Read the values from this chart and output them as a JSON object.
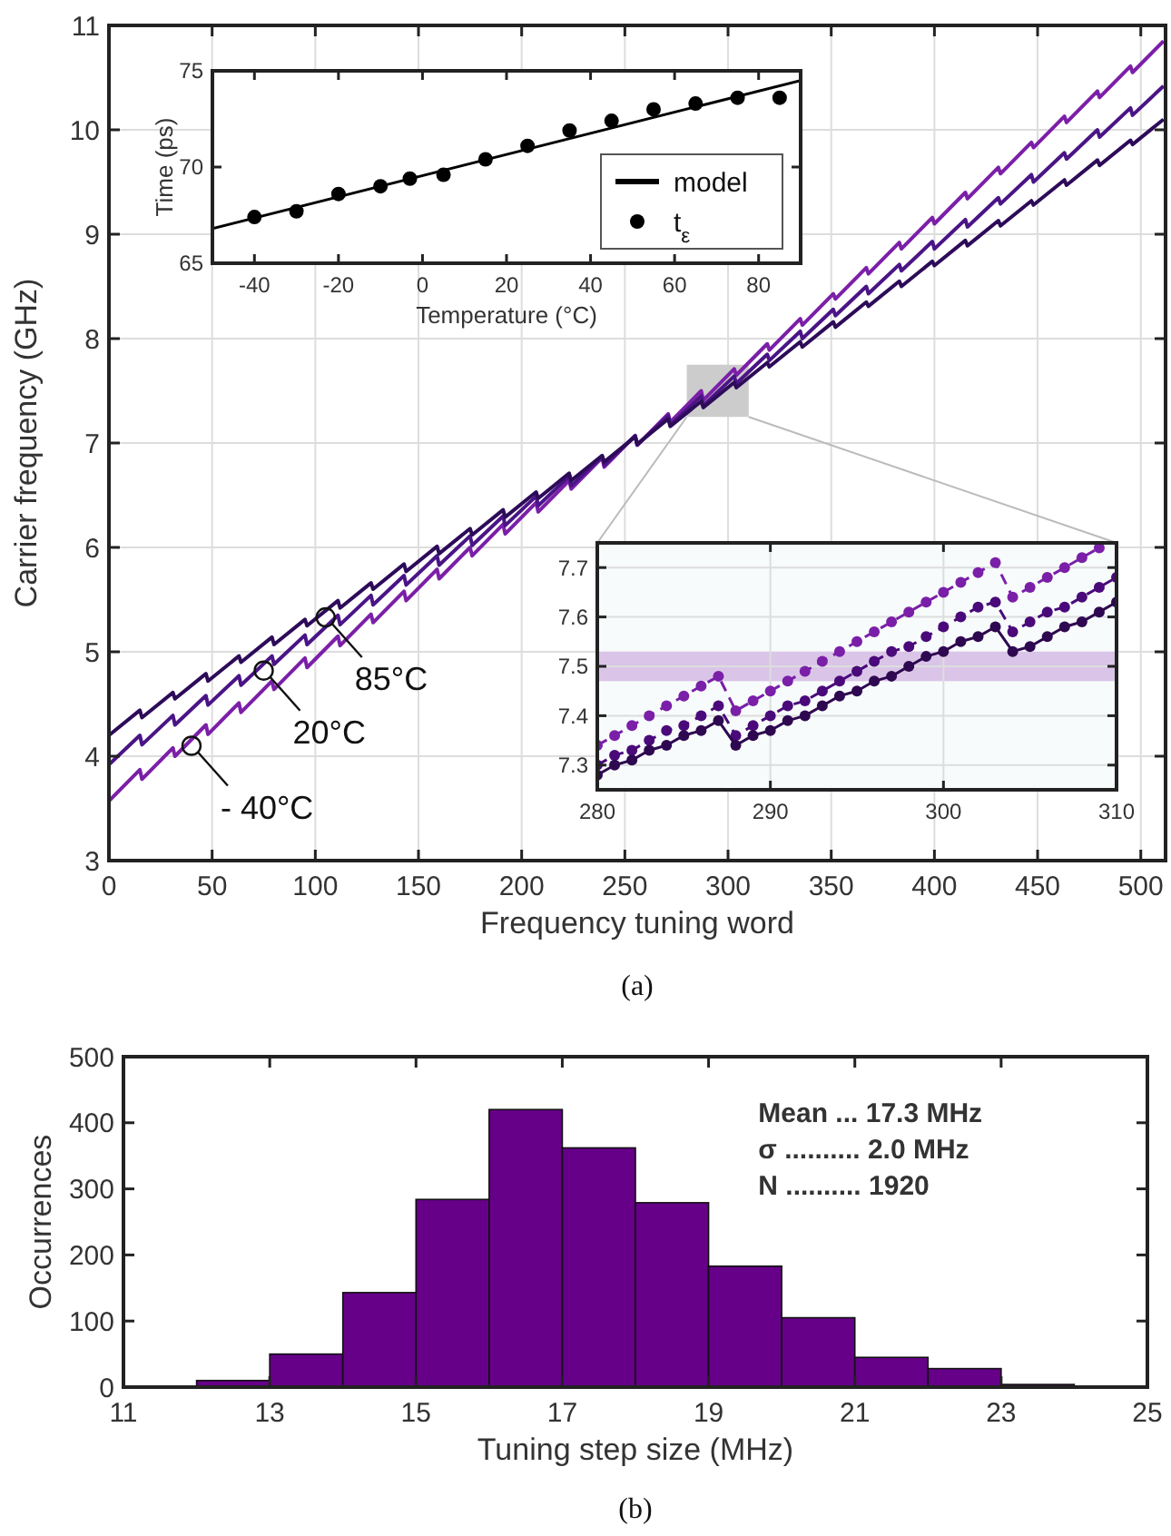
{
  "chart_data": [
    {
      "type": "line",
      "xlabel": "Frequency tuning word",
      "ylabel": "Carrier frequency (GHz)",
      "xlim": [
        0,
        512
      ],
      "ylim": [
        3,
        11
      ],
      "xticks": [
        0,
        50,
        100,
        150,
        200,
        250,
        300,
        350,
        400,
        450,
        500
      ],
      "yticks": [
        3,
        4,
        5,
        6,
        7,
        8,
        9,
        10,
        11
      ],
      "grid": true,
      "x": [
        0,
        15,
        16,
        31,
        32,
        47,
        48,
        63,
        64,
        79,
        80,
        95,
        96,
        111,
        112,
        127,
        128,
        143,
        144,
        159,
        160,
        175,
        176,
        191,
        192,
        207,
        208,
        223,
        224,
        239,
        240,
        255,
        256,
        271,
        272,
        287,
        288,
        303,
        304,
        319,
        320,
        335,
        336,
        351,
        352,
        367,
        368,
        383,
        384,
        399,
        400,
        415,
        416,
        431,
        432,
        447,
        448,
        463,
        464,
        479,
        480,
        495,
        496,
        511
      ],
      "series": [
        {
          "color": "#7b1fa8",
          "values": [
            3.57,
            3.87,
            3.78,
            4.08,
            4.0,
            4.3,
            4.21,
            4.51,
            4.42,
            4.72,
            4.64,
            4.94,
            4.85,
            5.15,
            5.06,
            5.36,
            5.28,
            5.58,
            5.49,
            5.79,
            5.7,
            6.0,
            5.92,
            6.22,
            6.13,
            6.43,
            6.34,
            6.64,
            6.56,
            6.86,
            6.77,
            7.07,
            6.98,
            7.28,
            7.2,
            7.5,
            7.41,
            7.71,
            7.65,
            7.95,
            7.89,
            8.19,
            8.13,
            8.43,
            8.38,
            8.68,
            8.62,
            8.92,
            8.86,
            9.16,
            9.1,
            9.4,
            9.34,
            9.64,
            9.58,
            9.88,
            9.83,
            10.13,
            10.07,
            10.37,
            10.31,
            10.61,
            10.55,
            10.85
          ]
        },
        {
          "color": "#4a1486",
          "values": [
            3.92,
            4.2,
            4.11,
            4.39,
            4.3,
            4.58,
            4.49,
            4.77,
            4.68,
            4.96,
            4.88,
            5.16,
            5.07,
            5.35,
            5.26,
            5.54,
            5.45,
            5.73,
            5.64,
            5.92,
            5.83,
            6.11,
            6.02,
            6.3,
            6.21,
            6.49,
            6.4,
            6.68,
            6.59,
            6.87,
            6.79,
            7.07,
            6.98,
            7.26,
            7.17,
            7.45,
            7.36,
            7.64,
            7.57,
            7.85,
            7.79,
            8.07,
            8.0,
            8.28,
            8.22,
            8.5,
            8.43,
            8.71,
            8.65,
            8.93,
            8.86,
            9.14,
            9.07,
            9.35,
            9.29,
            9.57,
            9.5,
            9.78,
            9.72,
            10.0,
            9.93,
            10.21,
            10.14,
            10.42
          ]
        },
        {
          "color": "#2d0b59",
          "values": [
            4.2,
            4.44,
            4.37,
            4.61,
            4.55,
            4.79,
            4.72,
            4.96,
            4.9,
            5.14,
            5.07,
            5.31,
            5.25,
            5.49,
            5.42,
            5.66,
            5.6,
            5.84,
            5.77,
            6.01,
            5.94,
            6.18,
            6.12,
            6.36,
            6.29,
            6.53,
            6.47,
            6.71,
            6.64,
            6.88,
            6.82,
            7.06,
            6.99,
            7.23,
            7.16,
            7.4,
            7.34,
            7.58,
            7.53,
            7.77,
            7.73,
            7.97,
            7.92,
            8.16,
            8.11,
            8.35,
            8.31,
            8.55,
            8.5,
            8.74,
            8.7,
            8.94,
            8.89,
            9.13,
            9.08,
            9.32,
            9.28,
            9.52,
            9.47,
            9.71,
            9.66,
            9.9,
            9.86,
            10.1
          ]
        }
      ],
      "annotations": [
        {
          "text": "- 40°C",
          "x": 40,
          "y": 4.1
        },
        {
          "text": "20°C",
          "x": 75,
          "y": 4.82
        },
        {
          "text": "85°C",
          "x": 105,
          "y": 5.33
        },
        "(a)"
      ]
    },
    {
      "type": "line",
      "xlabel": "Temperature (°C)",
      "ylabel": "Time (ps)",
      "xlim": [
        -50,
        90
      ],
      "ylim": [
        65,
        75
      ],
      "xticks": [
        -40,
        -20,
        0,
        20,
        40,
        60,
        80
      ],
      "yticks": [
        65,
        70,
        75
      ],
      "legend": "bottom right",
      "series": [
        {
          "name": "model",
          "type": "line",
          "color": "#000000",
          "x": [
            -50,
            90
          ],
          "values": [
            66.8,
            74.5
          ]
        },
        {
          "name": "t$_{ε}$",
          "type": "scatter",
          "color": "#000000",
          "x": [
            -40,
            -30,
            -20,
            -10,
            -3,
            5,
            15,
            25,
            35,
            45,
            55,
            65,
            75,
            85
          ],
          "values": [
            67.4,
            67.7,
            68.6,
            69.0,
            69.4,
            69.6,
            70.4,
            71.1,
            71.9,
            72.4,
            73.0,
            73.3,
            73.6,
            73.6
          ]
        }
      ]
    },
    {
      "type": "line",
      "xlim": [
        280,
        310
      ],
      "ylim": [
        7.25,
        7.75
      ],
      "xticks": [
        280,
        290,
        300,
        310
      ],
      "yticks": [
        7.3,
        7.4,
        7.5,
        7.6,
        7.7
      ],
      "grid": true,
      "marker": "circle",
      "x": [
        280,
        281,
        282,
        283,
        284,
        285,
        286,
        287,
        288,
        289,
        290,
        291,
        292,
        293,
        294,
        295,
        296,
        297,
        298,
        299,
        300,
        301,
        302,
        303,
        304,
        305,
        306,
        307,
        308,
        309,
        310
      ],
      "bands": [
        {
          "axis": "y",
          "from": 7.47,
          "to": 7.53,
          "color": "#d6bfe6"
        }
      ],
      "series": [
        {
          "color": "#7a1fa8",
          "line_style": "dashed",
          "values": [
            7.34,
            7.36,
            7.38,
            7.4,
            7.42,
            7.44,
            7.46,
            7.48,
            7.41,
            7.43,
            7.45,
            7.47,
            7.49,
            7.51,
            7.53,
            7.55,
            7.57,
            7.59,
            7.61,
            7.63,
            7.65,
            7.67,
            7.69,
            7.71,
            7.64,
            7.66,
            7.68,
            7.7,
            7.72,
            7.74,
            null
          ]
        },
        {
          "color": "#4a0a7a",
          "line_style": "dashed",
          "values": [
            7.3,
            7.32,
            7.33,
            7.35,
            7.37,
            7.38,
            7.4,
            7.42,
            7.36,
            7.38,
            7.4,
            7.42,
            7.43,
            7.45,
            7.47,
            7.49,
            7.51,
            7.53,
            7.54,
            7.56,
            7.58,
            7.6,
            7.62,
            7.63,
            7.57,
            7.59,
            7.61,
            7.62,
            7.64,
            7.66,
            7.68
          ]
        },
        {
          "color": "#2e0850",
          "line_style": "solid",
          "values": [
            7.28,
            7.3,
            7.31,
            7.33,
            7.34,
            7.36,
            7.37,
            7.39,
            7.34,
            7.36,
            7.37,
            7.39,
            7.4,
            7.42,
            7.44,
            7.45,
            7.47,
            7.48,
            7.5,
            7.52,
            7.53,
            7.55,
            7.56,
            7.58,
            7.53,
            7.54,
            7.56,
            7.58,
            7.59,
            7.61,
            7.63
          ]
        }
      ]
    },
    {
      "type": "histogram",
      "xlabel": "Tuning step size (MHz)",
      "ylabel": "Occurrences",
      "xlim": [
        11,
        25
      ],
      "ylim": [
        0,
        500
      ],
      "xticks": [
        11,
        13,
        15,
        17,
        19,
        21,
        23,
        25
      ],
      "yticks": [
        0,
        100,
        200,
        300,
        400,
        500
      ],
      "color": "#660088",
      "bins": [
        12,
        13,
        14,
        15,
        16,
        17,
        18,
        19,
        20,
        21,
        22,
        23,
        24
      ],
      "values": [
        10,
        50,
        143,
        284,
        420,
        362,
        279,
        183,
        105,
        45,
        28,
        4
      ],
      "annotations": [
        "Mean ... 17.3 MHz",
        "σ .......... 2.0 MHz",
        "N .......... 1920",
        "(b)"
      ]
    }
  ]
}
